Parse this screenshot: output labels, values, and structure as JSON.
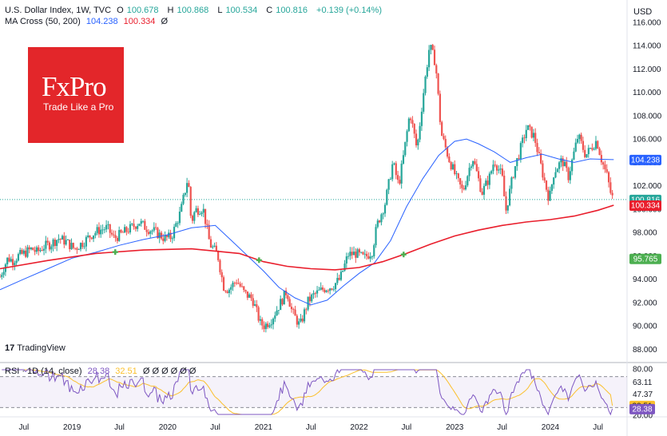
{
  "header": {
    "symbol_line": "U.S. Dollar Index, 1W, TVC",
    "ohlc": [
      {
        "label": "O",
        "value": "100.678"
      },
      {
        "label": "H",
        "value": "100.868"
      },
      {
        "label": "L",
        "value": "100.534"
      },
      {
        "label": "C",
        "value": "100.816"
      }
    ],
    "change": "+0.139 (+0.14%)",
    "ma_label": "MA Cross (50, 200)",
    "ma50_value": "104.238",
    "ma200_value": "100.334",
    "ma_extra": "Ø",
    "rsi_label": "RSI · 1D (14, close)",
    "rsi_value": "28.38",
    "rsi_ma_value": "32.51",
    "rsi_extra": "Ø Ø Ø Ø Ø Ø"
  },
  "currency": "USD",
  "logo": {
    "brand": "FxPro",
    "tagline": "Trade Like a Pro"
  },
  "watermark": "TradingView",
  "colors": {
    "up": "#26a69a",
    "down": "#ef5350",
    "ma50": "#2962ff",
    "ma200": "#e91e2c",
    "rsi": "#7e57c2",
    "rsi_ma": "#fbc02d",
    "cross": "#4caf50",
    "logo": "#e3262a"
  },
  "chart_data": [
    {
      "type": "candlestick",
      "title": "U.S. Dollar Index, 1W, TVC",
      "y_axis_ticks": [
        "116.000",
        "114.000",
        "112.000",
        "110.000",
        "108.000",
        "106.000",
        "104.000",
        "102.000",
        "100.000",
        "98.000",
        "96.000",
        "94.000",
        "92.000",
        "90.000",
        "88.000"
      ],
      "ylim": [
        87.0,
        116.4
      ],
      "x_axis_ticks": [
        "Jul",
        "2019",
        "Jul",
        "2020",
        "Jul",
        "2021",
        "Jul",
        "2022",
        "Jul",
        "2023",
        "Jul",
        "2024",
        "Jul"
      ],
      "x_tick_dates": [
        "2018-07-01",
        "2019-01-01",
        "2019-07-01",
        "2020-01-01",
        "2020-07-01",
        "2021-01-01",
        "2021-07-01",
        "2022-01-01",
        "2022-07-01",
        "2023-01-01",
        "2023-07-01",
        "2024-01-01",
        "2024-07-01"
      ],
      "xlim": [
        "2018-04-01",
        "2024-10-20"
      ],
      "price_path": [
        [
          "2018-04-01",
          94.2
        ],
        [
          "2018-04-15",
          95.0
        ],
        [
          "2018-05-01",
          95.8
        ],
        [
          "2018-05-20",
          95.6
        ],
        [
          "2018-06-10",
          96.0
        ],
        [
          "2018-07-01",
          96.2
        ],
        [
          "2018-08-01",
          96.6
        ],
        [
          "2018-08-20",
          96.3
        ],
        [
          "2018-09-15",
          96.8
        ],
        [
          "2018-10-10",
          97.0
        ],
        [
          "2018-11-10",
          97.5
        ],
        [
          "2018-12-10",
          97.2
        ],
        [
          "2019-01-10",
          96.6
        ],
        [
          "2019-02-15",
          97.2
        ],
        [
          "2019-03-15",
          97.8
        ],
        [
          "2019-04-15",
          98.2
        ],
        [
          "2019-05-15",
          98.4
        ],
        [
          "2019-06-10",
          97.5
        ],
        [
          "2019-07-10",
          97.9
        ],
        [
          "2019-08-15",
          98.4
        ],
        [
          "2019-09-15",
          98.9
        ],
        [
          "2019-10-10",
          98.4
        ],
        [
          "2019-11-10",
          98.1
        ],
        [
          "2019-12-20",
          97.5
        ],
        [
          "2020-01-15",
          97.6
        ],
        [
          "2020-02-20",
          99.8
        ],
        [
          "2020-03-19",
          102.8
        ],
        [
          "2020-03-31",
          98.8
        ],
        [
          "2020-04-15",
          99.9
        ],
        [
          "2020-05-15",
          100.1
        ],
        [
          "2020-06-10",
          97.0
        ],
        [
          "2020-07-10",
          96.1
        ],
        [
          "2020-08-01",
          93.4
        ],
        [
          "2020-08-20",
          93.1
        ],
        [
          "2020-09-20",
          93.9
        ],
        [
          "2020-10-20",
          92.8
        ],
        [
          "2020-11-20",
          92.3
        ],
        [
          "2020-12-20",
          90.2
        ],
        [
          "2021-01-05",
          90.0
        ],
        [
          "2021-02-01",
          90.6
        ],
        [
          "2021-03-10",
          92.1
        ],
        [
          "2021-03-31",
          93.0
        ],
        [
          "2021-04-20",
          91.2
        ],
        [
          "2021-05-20",
          90.0
        ],
        [
          "2021-06-20",
          92.1
        ],
        [
          "2021-07-10",
          92.6
        ],
        [
          "2021-08-20",
          93.2
        ],
        [
          "2021-09-20",
          93.4
        ],
        [
          "2021-10-20",
          94.0
        ],
        [
          "2021-11-20",
          96.1
        ],
        [
          "2021-12-20",
          96.2
        ],
        [
          "2022-01-20",
          95.8
        ],
        [
          "2022-02-20",
          96.4
        ],
        [
          "2022-03-10",
          98.6
        ],
        [
          "2022-04-10",
          100.5
        ],
        [
          "2022-05-10",
          104.0
        ],
        [
          "2022-06-01",
          102.0
        ],
        [
          "2022-06-20",
          104.6
        ],
        [
          "2022-07-14",
          108.3
        ],
        [
          "2022-08-10",
          105.1
        ],
        [
          "2022-09-01",
          109.5
        ],
        [
          "2022-09-27",
          114.0
        ],
        [
          "2022-10-20",
          112.5
        ],
        [
          "2022-11-10",
          106.5
        ],
        [
          "2022-12-10",
          104.3
        ],
        [
          "2023-01-10",
          102.5
        ],
        [
          "2023-02-01",
          101.5
        ],
        [
          "2023-03-10",
          104.5
        ],
        [
          "2023-04-15",
          101.4
        ],
        [
          "2023-05-15",
          102.8
        ],
        [
          "2023-06-01",
          104.2
        ],
        [
          "2023-07-01",
          102.8
        ],
        [
          "2023-07-15",
          99.8
        ],
        [
          "2023-08-15",
          103.3
        ],
        [
          "2023-09-15",
          105.6
        ],
        [
          "2023-10-03",
          107.0
        ],
        [
          "2023-11-01",
          106.2
        ],
        [
          "2023-12-01",
          103.2
        ],
        [
          "2023-12-28",
          100.8
        ],
        [
          "2024-01-15",
          103.2
        ],
        [
          "2024-02-15",
          104.2
        ],
        [
          "2024-03-10",
          102.8
        ],
        [
          "2024-04-16",
          106.3
        ],
        [
          "2024-05-15",
          104.6
        ],
        [
          "2024-06-26",
          105.9
        ],
        [
          "2024-07-15",
          104.2
        ],
        [
          "2024-08-05",
          102.8
        ],
        [
          "2024-08-20",
          101.2
        ],
        [
          "2024-08-30",
          100.8
        ]
      ],
      "series": [
        {
          "name": "MA 50",
          "color": "#2962ff",
          "points": [
            [
              "2018-04-01",
              93.1
            ],
            [
              "2018-07-01",
              94.0
            ],
            [
              "2018-10-01",
              94.9
            ],
            [
              "2019-01-01",
              95.8
            ],
            [
              "2019-04-01",
              96.3
            ],
            [
              "2019-07-01",
              96.9
            ],
            [
              "2019-10-01",
              97.4
            ],
            [
              "2020-01-01",
              97.8
            ],
            [
              "2020-04-01",
              98.4
            ],
            [
              "2020-07-01",
              98.6
            ],
            [
              "2020-09-01",
              97.3
            ],
            [
              "2020-11-01",
              96.0
            ],
            [
              "2021-01-01",
              94.7
            ],
            [
              "2021-03-01",
              93.3
            ],
            [
              "2021-05-01",
              92.4
            ],
            [
              "2021-07-01",
              91.8
            ],
            [
              "2021-09-01",
              92.2
            ],
            [
              "2021-11-01",
              93.4
            ],
            [
              "2022-01-01",
              94.5
            ],
            [
              "2022-03-01",
              95.4
            ],
            [
              "2022-05-01",
              97.3
            ],
            [
              "2022-07-01",
              100.2
            ],
            [
              "2022-09-01",
              102.6
            ],
            [
              "2022-11-01",
              104.6
            ],
            [
              "2023-01-01",
              105.8
            ],
            [
              "2023-02-15",
              106.0
            ],
            [
              "2023-04-01",
              105.6
            ],
            [
              "2023-06-01",
              104.9
            ],
            [
              "2023-08-01",
              104.0
            ],
            [
              "2023-10-01",
              104.4
            ],
            [
              "2023-12-01",
              104.7
            ],
            [
              "2024-02-01",
              104.3
            ],
            [
              "2024-04-01",
              104.0
            ],
            [
              "2024-06-01",
              104.3
            ],
            [
              "2024-08-30",
              104.238
            ]
          ]
        },
        {
          "name": "MA 200",
          "color": "#e91e2c",
          "points": [
            [
              "2018-04-01",
              94.9
            ],
            [
              "2018-10-01",
              95.6
            ],
            [
              "2019-04-01",
              96.2
            ],
            [
              "2019-10-01",
              96.5
            ],
            [
              "2020-04-01",
              96.6
            ],
            [
              "2020-10-01",
              96.2
            ],
            [
              "2021-01-01",
              95.5
            ],
            [
              "2021-04-01",
              95.1
            ],
            [
              "2021-07-01",
              94.9
            ],
            [
              "2021-10-01",
              94.8
            ],
            [
              "2022-01-01",
              95.0
            ],
            [
              "2022-04-01",
              95.5
            ],
            [
              "2022-07-01",
              96.2
            ],
            [
              "2022-10-01",
              97.0
            ],
            [
              "2023-01-01",
              97.7
            ],
            [
              "2023-04-01",
              98.2
            ],
            [
              "2023-07-01",
              98.6
            ],
            [
              "2023-10-01",
              98.9
            ],
            [
              "2024-01-01",
              99.1
            ],
            [
              "2024-04-01",
              99.4
            ],
            [
              "2024-07-01",
              99.9
            ],
            [
              "2024-08-30",
              100.334
            ]
          ]
        }
      ],
      "crosses": [
        "2019-06-15",
        "2020-12-15",
        "2022-06-20"
      ],
      "price_labels": [
        {
          "text": "104.238",
          "value": 104.238,
          "color": "#2962ff"
        },
        {
          "text": "100.816",
          "value": 100.816,
          "color": "#26a69a"
        },
        {
          "text": "100.334",
          "value": 100.334,
          "color": "#e91e2c"
        },
        {
          "text": "95.765",
          "value": 95.765,
          "color": "#4caf50"
        }
      ]
    },
    {
      "type": "line",
      "title": "RSI · 1D (14, close)",
      "y_axis_ticks": [
        "80.00",
        "63.11",
        "47.37",
        "20.00"
      ],
      "ylim": [
        20,
        80
      ],
      "band": [
        30,
        70
      ],
      "series": [
        {
          "name": "RSI",
          "color": "#7e57c2"
        },
        {
          "name": "RSI MA",
          "color": "#fbc02d"
        }
      ],
      "last_values": [
        {
          "text": "32.51",
          "value": 32.51,
          "color": "#fbc02d"
        },
        {
          "text": "28.38",
          "value": 28.38,
          "color": "#7e57c2"
        }
      ]
    }
  ]
}
